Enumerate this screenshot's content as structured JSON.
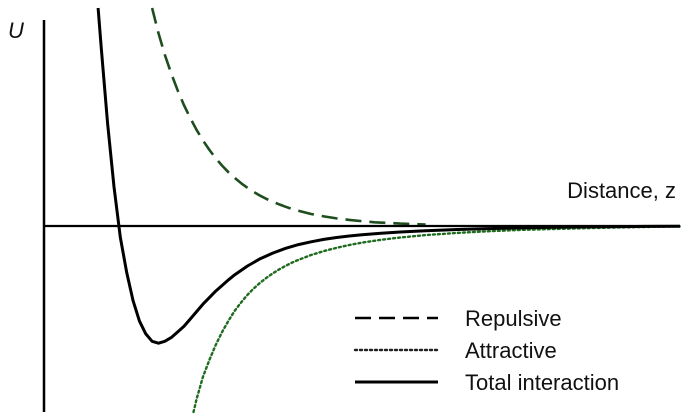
{
  "chart_data": {
    "type": "line",
    "title": "",
    "xlabel": "Distance, z",
    "ylabel": "U",
    "xlim": [
      0,
      1
    ],
    "ylim": [
      -1,
      1
    ],
    "grid": false,
    "legend_placement": "bottom-right",
    "series": [
      {
        "name": "Repulsive",
        "style": "dashed",
        "color": "#1e4d1e",
        "x": [
          0.17,
          0.18,
          0.19,
          0.2,
          0.21,
          0.22,
          0.23,
          0.24,
          0.25,
          0.26,
          0.27,
          0.28,
          0.29,
          0.3,
          0.31,
          0.32,
          0.33,
          0.34,
          0.35,
          0.36,
          0.37,
          0.38,
          0.39,
          0.4,
          0.42,
          0.44,
          0.46,
          0.48,
          0.5,
          0.52,
          0.54,
          0.56,
          0.58,
          0.6
        ],
        "y": [
          1.0,
          0.884,
          0.786,
          0.7,
          0.623,
          0.555,
          0.495,
          0.441,
          0.392,
          0.349,
          0.311,
          0.277,
          0.247,
          0.22,
          0.196,
          0.175,
          0.156,
          0.139,
          0.124,
          0.111,
          0.099,
          0.088,
          0.078,
          0.07,
          0.055,
          0.044,
          0.035,
          0.028,
          0.022,
          0.017,
          0.014,
          0.011,
          0.009,
          0.007
        ]
      },
      {
        "name": "Attractive",
        "style": "dotted",
        "color": "#1f6b1f",
        "x": [
          0.235,
          0.24,
          0.25,
          0.26,
          0.27,
          0.28,
          0.29,
          0.3,
          0.31,
          0.32,
          0.33,
          0.34,
          0.35,
          0.36,
          0.37,
          0.38,
          0.39,
          0.4,
          0.42,
          0.44,
          0.46,
          0.48,
          0.5,
          0.53,
          0.56,
          0.6,
          0.65,
          0.7,
          0.75,
          0.8,
          0.85,
          0.9,
          0.95,
          1.0
        ],
        "y": [
          -1.0,
          -0.93,
          -0.81,
          -0.72,
          -0.64,
          -0.57,
          -0.51,
          -0.455,
          -0.41,
          -0.37,
          -0.335,
          -0.305,
          -0.278,
          -0.254,
          -0.233,
          -0.214,
          -0.197,
          -0.182,
          -0.156,
          -0.135,
          -0.117,
          -0.102,
          -0.089,
          -0.074,
          -0.062,
          -0.049,
          -0.037,
          -0.028,
          -0.021,
          -0.016,
          -0.012,
          -0.008,
          -0.005,
          -0.002
        ]
      },
      {
        "name": "Total interaction",
        "style": "solid",
        "color": "#000000",
        "x": [
          0.085,
          0.09,
          0.1,
          0.11,
          0.12,
          0.13,
          0.14,
          0.15,
          0.16,
          0.17,
          0.18,
          0.19,
          0.2,
          0.21,
          0.22,
          0.23,
          0.24,
          0.25,
          0.26,
          0.27,
          0.28,
          0.29,
          0.3,
          0.32,
          0.34,
          0.36,
          0.38,
          0.4,
          0.42,
          0.44,
          0.46,
          0.48,
          0.5,
          0.53,
          0.56,
          0.6,
          0.65,
          0.7,
          0.75,
          0.8,
          0.85,
          0.9,
          0.95,
          1.0
        ],
        "y": [
          1.0,
          0.82,
          0.47,
          0.18,
          -0.06,
          -0.25,
          -0.4,
          -0.51,
          -0.58,
          -0.62,
          -0.63,
          -0.62,
          -0.6,
          -0.57,
          -0.54,
          -0.5,
          -0.46,
          -0.42,
          -0.385,
          -0.35,
          -0.32,
          -0.29,
          -0.262,
          -0.215,
          -0.176,
          -0.145,
          -0.12,
          -0.1,
          -0.085,
          -0.072,
          -0.062,
          -0.054,
          -0.047,
          -0.039,
          -0.032,
          -0.025,
          -0.019,
          -0.014,
          -0.01,
          -0.007,
          -0.005,
          -0.003,
          -0.002,
          -0.001
        ]
      }
    ]
  }
}
